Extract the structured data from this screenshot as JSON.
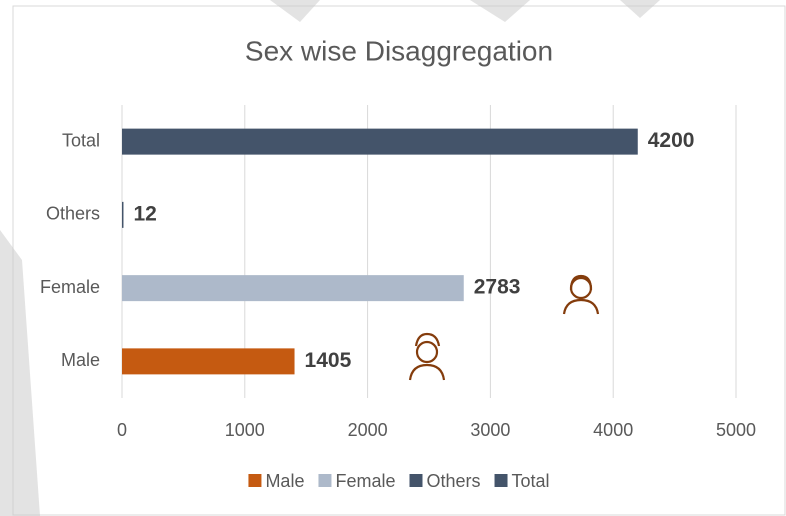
{
  "chart_data": {
    "type": "bar",
    "orientation": "horizontal",
    "title": "Sex wise Disaggregation",
    "categories": [
      "Male",
      "Female",
      "Others",
      "Total"
    ],
    "values": [
      1405,
      2783,
      12,
      4200
    ],
    "colors": [
      "#c55a11",
      "#adb9ca",
      "#44546a",
      "#44546a"
    ],
    "xlim": [
      0,
      5000
    ],
    "xticks": [
      0,
      1000,
      2000,
      3000,
      4000,
      5000
    ],
    "grid": true,
    "legend": "bottom"
  }
}
